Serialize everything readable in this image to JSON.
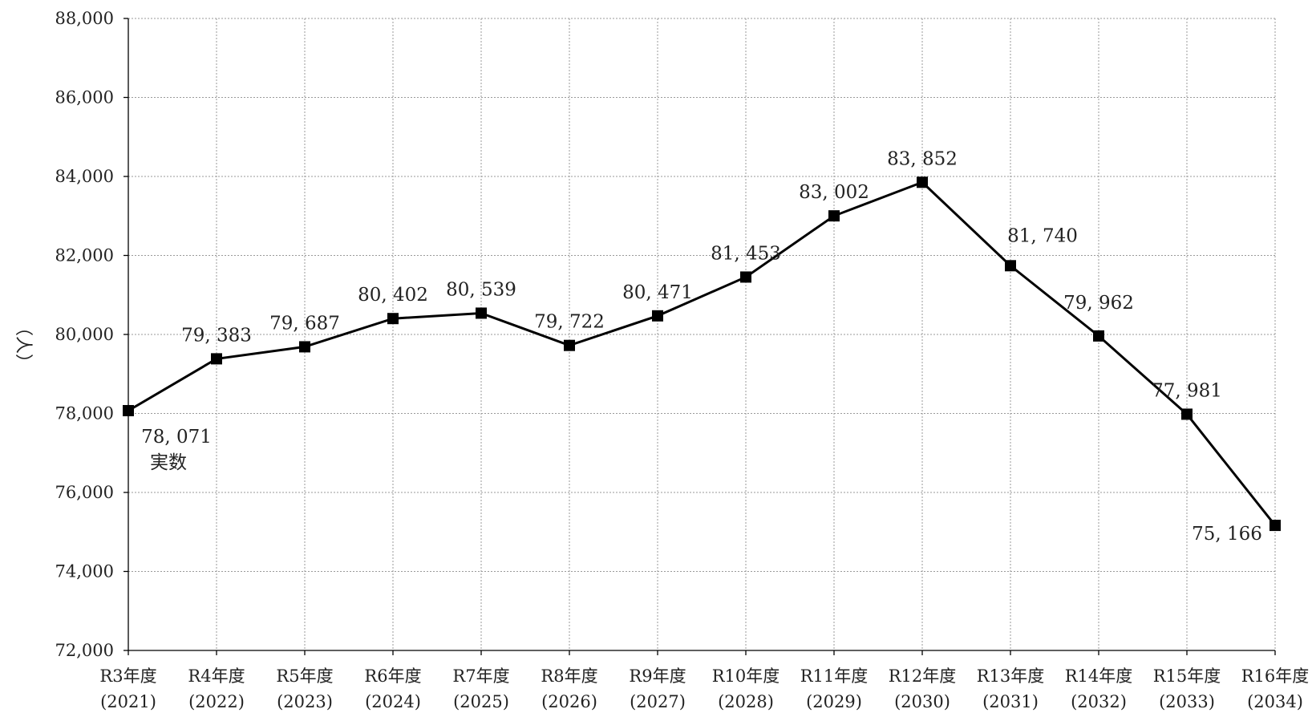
{
  "chart_data": {
    "type": "line",
    "ylabel": "（人）",
    "ylim": [
      72000,
      88000
    ],
    "yticks": [
      "72,000",
      "74,000",
      "76,000",
      "78,000",
      "80,000",
      "82,000",
      "84,000",
      "86,000",
      "88,000"
    ],
    "grid": true,
    "categories": [
      {
        "line1": "R3年度",
        "line2": "(2021)"
      },
      {
        "line1": "R4年度",
        "line2": "(2022)"
      },
      {
        "line1": "R5年度",
        "line2": "(2023)"
      },
      {
        "line1": "R6年度",
        "line2": "(2024)"
      },
      {
        "line1": "R7年度",
        "line2": "(2025)"
      },
      {
        "line1": "R8年度",
        "line2": "(2026)"
      },
      {
        "line1": "R9年度",
        "line2": "(2027)"
      },
      {
        "line1": "R10年度",
        "line2": "(2028)"
      },
      {
        "line1": "R11年度",
        "line2": "(2029)"
      },
      {
        "line1": "R12年度",
        "line2": "(2030)"
      },
      {
        "line1": "R13年度",
        "line2": "(2031)"
      },
      {
        "line1": "R14年度",
        "line2": "(2032)"
      },
      {
        "line1": "R15年度",
        "line2": "(2033)"
      },
      {
        "line1": "R16年度",
        "line2": "(2034)"
      }
    ],
    "values": [
      78071,
      79383,
      79687,
      80402,
      80539,
      79722,
      80471,
      81453,
      83002,
      83852,
      81740,
      79962,
      77981,
      75166
    ],
    "data_labels": [
      "78, 071",
      "79, 383",
      "79, 687",
      "80, 402",
      "80, 539",
      "79, 722",
      "80, 471",
      "81, 453",
      "83, 002",
      "83, 852",
      "81, 740",
      "79, 962",
      "77, 981",
      "75, 166"
    ],
    "annotations": [
      {
        "index": 0,
        "text": "実数"
      }
    ]
  }
}
